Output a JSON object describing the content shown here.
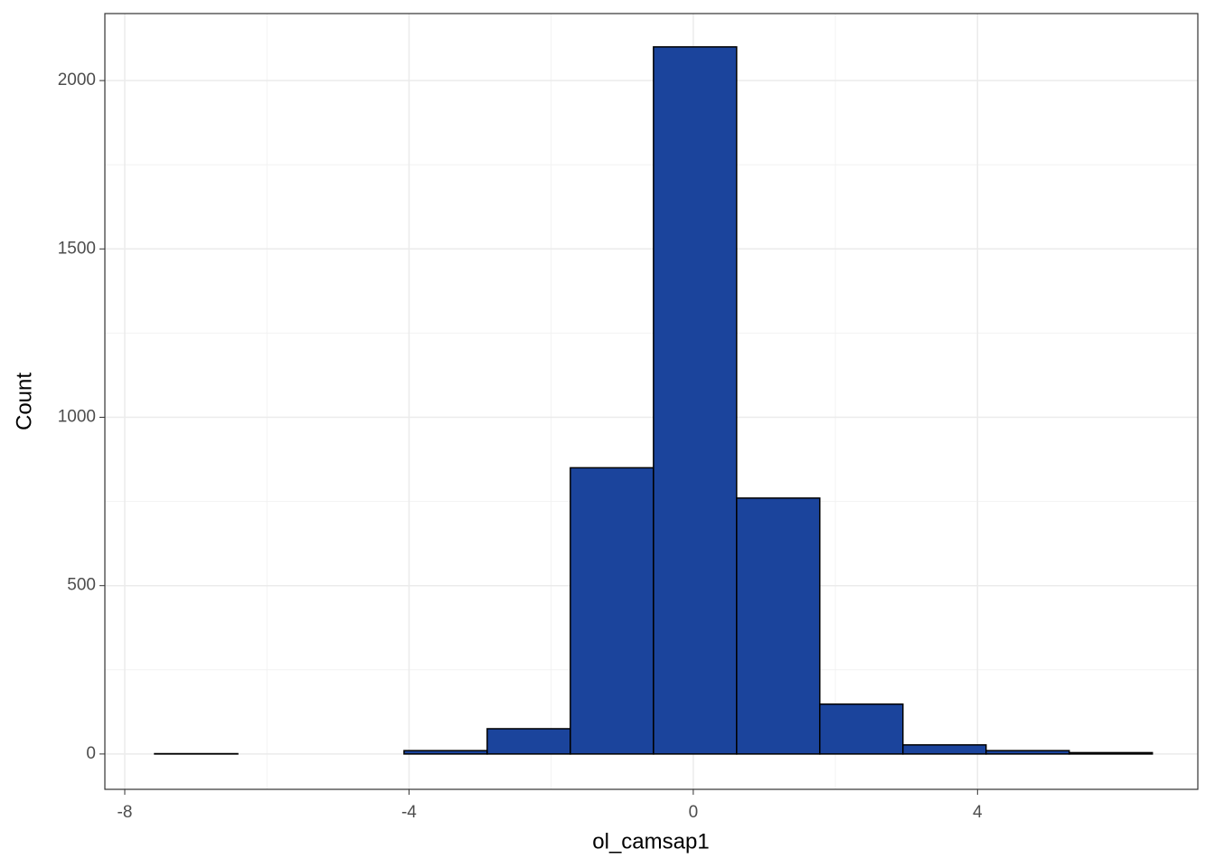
{
  "chart_data": {
    "type": "histogram",
    "x_label": "ol_camsap1",
    "y_label": "Count",
    "bins": [
      -7.58,
      -6.41,
      -5.24,
      -4.07,
      -2.9,
      -1.73,
      -0.56,
      0.61,
      1.78,
      2.95,
      4.12,
      5.29,
      6.46
    ],
    "values": [
      1,
      0,
      0,
      10,
      75,
      850,
      2100,
      760,
      148,
      27,
      10,
      4
    ],
    "color": "#1b449c",
    "xlim": [
      -8.28,
      7.1
    ],
    "ylim": [
      -105,
      2199
    ],
    "xticks": [
      -8,
      -4,
      0,
      4
    ],
    "yticks": [
      0,
      500,
      1000,
      1500,
      2000
    ],
    "grid": true
  }
}
